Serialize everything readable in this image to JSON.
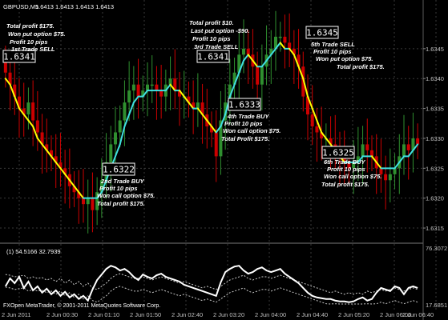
{
  "header": {
    "symbol": "GBPUSD,M5",
    "ohlc": "1.6413 1.6413 1.6413 1.6413"
  },
  "indicator": {
    "label": "(1) 54.5166 32.7939",
    "scale_top": "76.3072",
    "scale_bottom": "17.6851"
  },
  "footer": {
    "copyright": "FXOpen MetaTrader, © 2001-2011 MetaQuotes Software Corp."
  },
  "price_axis": [
    "1.6345",
    "1.6340",
    "1.6335",
    "1.6330",
    "1.6325",
    "1.6320",
    "1.6315"
  ],
  "time_axis": [
    "2 Jun 2011",
    "2 Jun 00:30",
    "2 Jun 01:10",
    "2 Jun 01:50",
    "2 Jun 02:40",
    "2 Jun 03:20",
    "2 Jun 04:00",
    "2 Jun 04:40",
    "2 Jun 05:20",
    "2 Jun 06:00",
    "2 Jun 06:40"
  ],
  "price_boxes": {
    "b1": "1.6341",
    "b2": "1.6322",
    "b3": "1.6341",
    "b4": "1.6333",
    "b5": "1.6345",
    "b6": "1.6325"
  },
  "annotations": {
    "a1": [
      "Total profit $175.",
      "Won put option $75.",
      "Profit 10 pips",
      "1st Trade SELL"
    ],
    "a2": [
      "Total profit $10.",
      "Last put option -$90.",
      "Profit 10 pips",
      "3rd Trade SELL"
    ],
    "a3": [
      "5th Trade SELL",
      "Profit 10 pips",
      "Won put option $75.",
      "Total profit $175."
    ],
    "a4": [
      "4th Trade BUY",
      "Profit 10 pips",
      "Won call option $75.",
      "Total Profit $175."
    ],
    "a5": [
      "2nd Trade BUY",
      "Profit 10 pips",
      "Won call option $75.",
      "Total profit $175."
    ],
    "a6": [
      "6th Trade BUY",
      "Profit 10 pips",
      "Won call option $75.",
      "Total profit $175."
    ]
  },
  "chart_data": {
    "type": "candlestick",
    "symbol": "GBPUSD",
    "timeframe": "M5",
    "price_ylim": [
      1.6313,
      1.6351
    ],
    "close": [
      1.6341,
      1.6339,
      1.6337,
      1.6335,
      1.6334,
      1.6336,
      1.6333,
      1.6331,
      1.6329,
      1.6328,
      1.6327,
      1.6326,
      1.6325,
      1.6324,
      1.6322,
      1.6321,
      1.632,
      1.6319,
      1.632,
      1.6318,
      1.6321,
      1.6323,
      1.6326,
      1.6329,
      1.6331,
      1.6333,
      1.6336,
      1.6338,
      1.6339,
      1.6337,
      1.6338,
      1.6339,
      1.6339,
      1.6338,
      1.6337,
      1.6339,
      1.634,
      1.6338,
      1.6337,
      1.6337,
      1.6336,
      1.6335,
      1.6336,
      1.6334,
      1.6332,
      1.6331,
      1.6327,
      1.6333,
      1.6336,
      1.6339,
      1.6341,
      1.6344,
      1.6345,
      1.6344,
      1.6342,
      1.6339,
      1.6342,
      1.6344,
      1.6345,
      1.6347,
      1.6347,
      1.6346,
      1.6345,
      1.6344,
      1.6342,
      1.6337,
      1.6334,
      1.6332,
      1.6331,
      1.633,
      1.633,
      1.6329,
      1.6328,
      1.6327,
      1.6326,
      1.6325,
      1.6326,
      1.6327,
      1.6329,
      1.6328,
      1.6327,
      1.6325,
      1.6324,
      1.6323,
      1.6324,
      1.6325,
      1.6327,
      1.6329,
      1.6328,
      1.633,
      1.6329
    ],
    "ma_fast": [
      1.634,
      1.6339,
      1.6337,
      1.6335,
      1.6334,
      1.6333,
      1.6332,
      1.633,
      1.6329,
      1.6328,
      1.6327,
      1.6326,
      1.6325,
      1.6324,
      1.6323,
      1.6322,
      1.6321,
      1.632,
      1.632,
      1.632,
      1.632,
      1.6321,
      1.6323,
      1.6325,
      1.6327,
      1.6329,
      1.6332,
      1.6334,
      1.6336,
      1.6337,
      1.6337,
      1.6338,
      1.6338,
      1.6338,
      1.6338,
      1.6338,
      1.6339,
      1.6338,
      1.6338,
      1.6337,
      1.6336,
      1.6335,
      1.6335,
      1.6334,
      1.6333,
      1.6332,
      1.6331,
      1.6332,
      1.6334,
      1.6337,
      1.6339,
      1.6341,
      1.6343,
      1.6344,
      1.6343,
      1.6342,
      1.6342,
      1.6343,
      1.6344,
      1.6345,
      1.6346,
      1.6345,
      1.6345,
      1.6344,
      1.6342,
      1.634,
      1.6337,
      1.6335,
      1.6333,
      1.6331,
      1.633,
      1.6329,
      1.6328,
      1.6327,
      1.6326,
      1.6326,
      1.6326,
      1.6326,
      1.6327,
      1.6327,
      1.6327,
      1.6326,
      1.6325,
      1.6325,
      1.6325,
      1.6325,
      1.6326,
      1.6327,
      1.6327,
      1.6328,
      1.6329
    ],
    "rsi_ylim": [
      17.6851,
      76.3072
    ],
    "rsi_main": [
      40,
      50,
      44,
      52,
      38,
      46,
      35,
      40,
      32,
      37,
      30,
      35,
      28,
      33,
      26,
      30,
      24,
      28,
      22,
      36,
      48,
      55,
      62,
      66,
      64,
      60,
      62,
      58,
      52,
      48,
      55,
      52,
      50,
      54,
      56,
      52,
      50,
      48,
      46,
      42,
      40,
      38,
      36,
      34,
      32,
      30,
      28,
      45,
      58,
      62,
      65,
      66,
      60,
      56,
      58,
      62,
      64,
      60,
      58,
      60,
      62,
      56,
      52,
      48,
      44,
      38,
      32,
      28,
      26,
      25,
      24,
      24,
      22,
      21,
      21,
      20,
      21,
      24,
      26,
      22,
      24,
      32,
      38,
      36,
      34,
      40,
      38,
      30,
      38,
      40,
      38
    ],
    "rsi_signal": [
      55,
      54,
      52,
      53,
      54,
      50,
      52,
      50,
      51,
      48,
      50,
      46,
      50,
      44,
      48,
      42,
      46,
      40,
      44,
      38,
      36,
      40,
      44,
      50,
      54,
      56,
      54,
      52,
      50,
      50,
      52,
      50,
      48,
      50,
      52,
      50,
      48,
      46,
      44,
      46,
      44,
      42,
      40,
      38,
      40,
      38,
      36,
      40,
      44,
      48,
      50,
      52,
      54,
      50,
      48,
      50,
      52,
      52,
      50,
      52,
      54,
      52,
      50,
      48,
      46,
      44,
      42,
      40,
      38,
      36,
      34,
      32,
      34,
      32,
      30,
      32,
      30,
      32,
      30,
      34,
      32,
      34,
      36,
      34,
      36,
      38,
      36,
      34,
      36,
      38,
      36
    ]
  },
  "colors": {
    "background": "#000000",
    "grid": "#3a3a3a",
    "bull": "#2f8f2f",
    "bear": "#cc0000",
    "ma_fast_down": "#ffff00",
    "ma_fast_up": "#40e0e0",
    "text": "#ffffff",
    "axis_text": "#c0c0c0"
  }
}
